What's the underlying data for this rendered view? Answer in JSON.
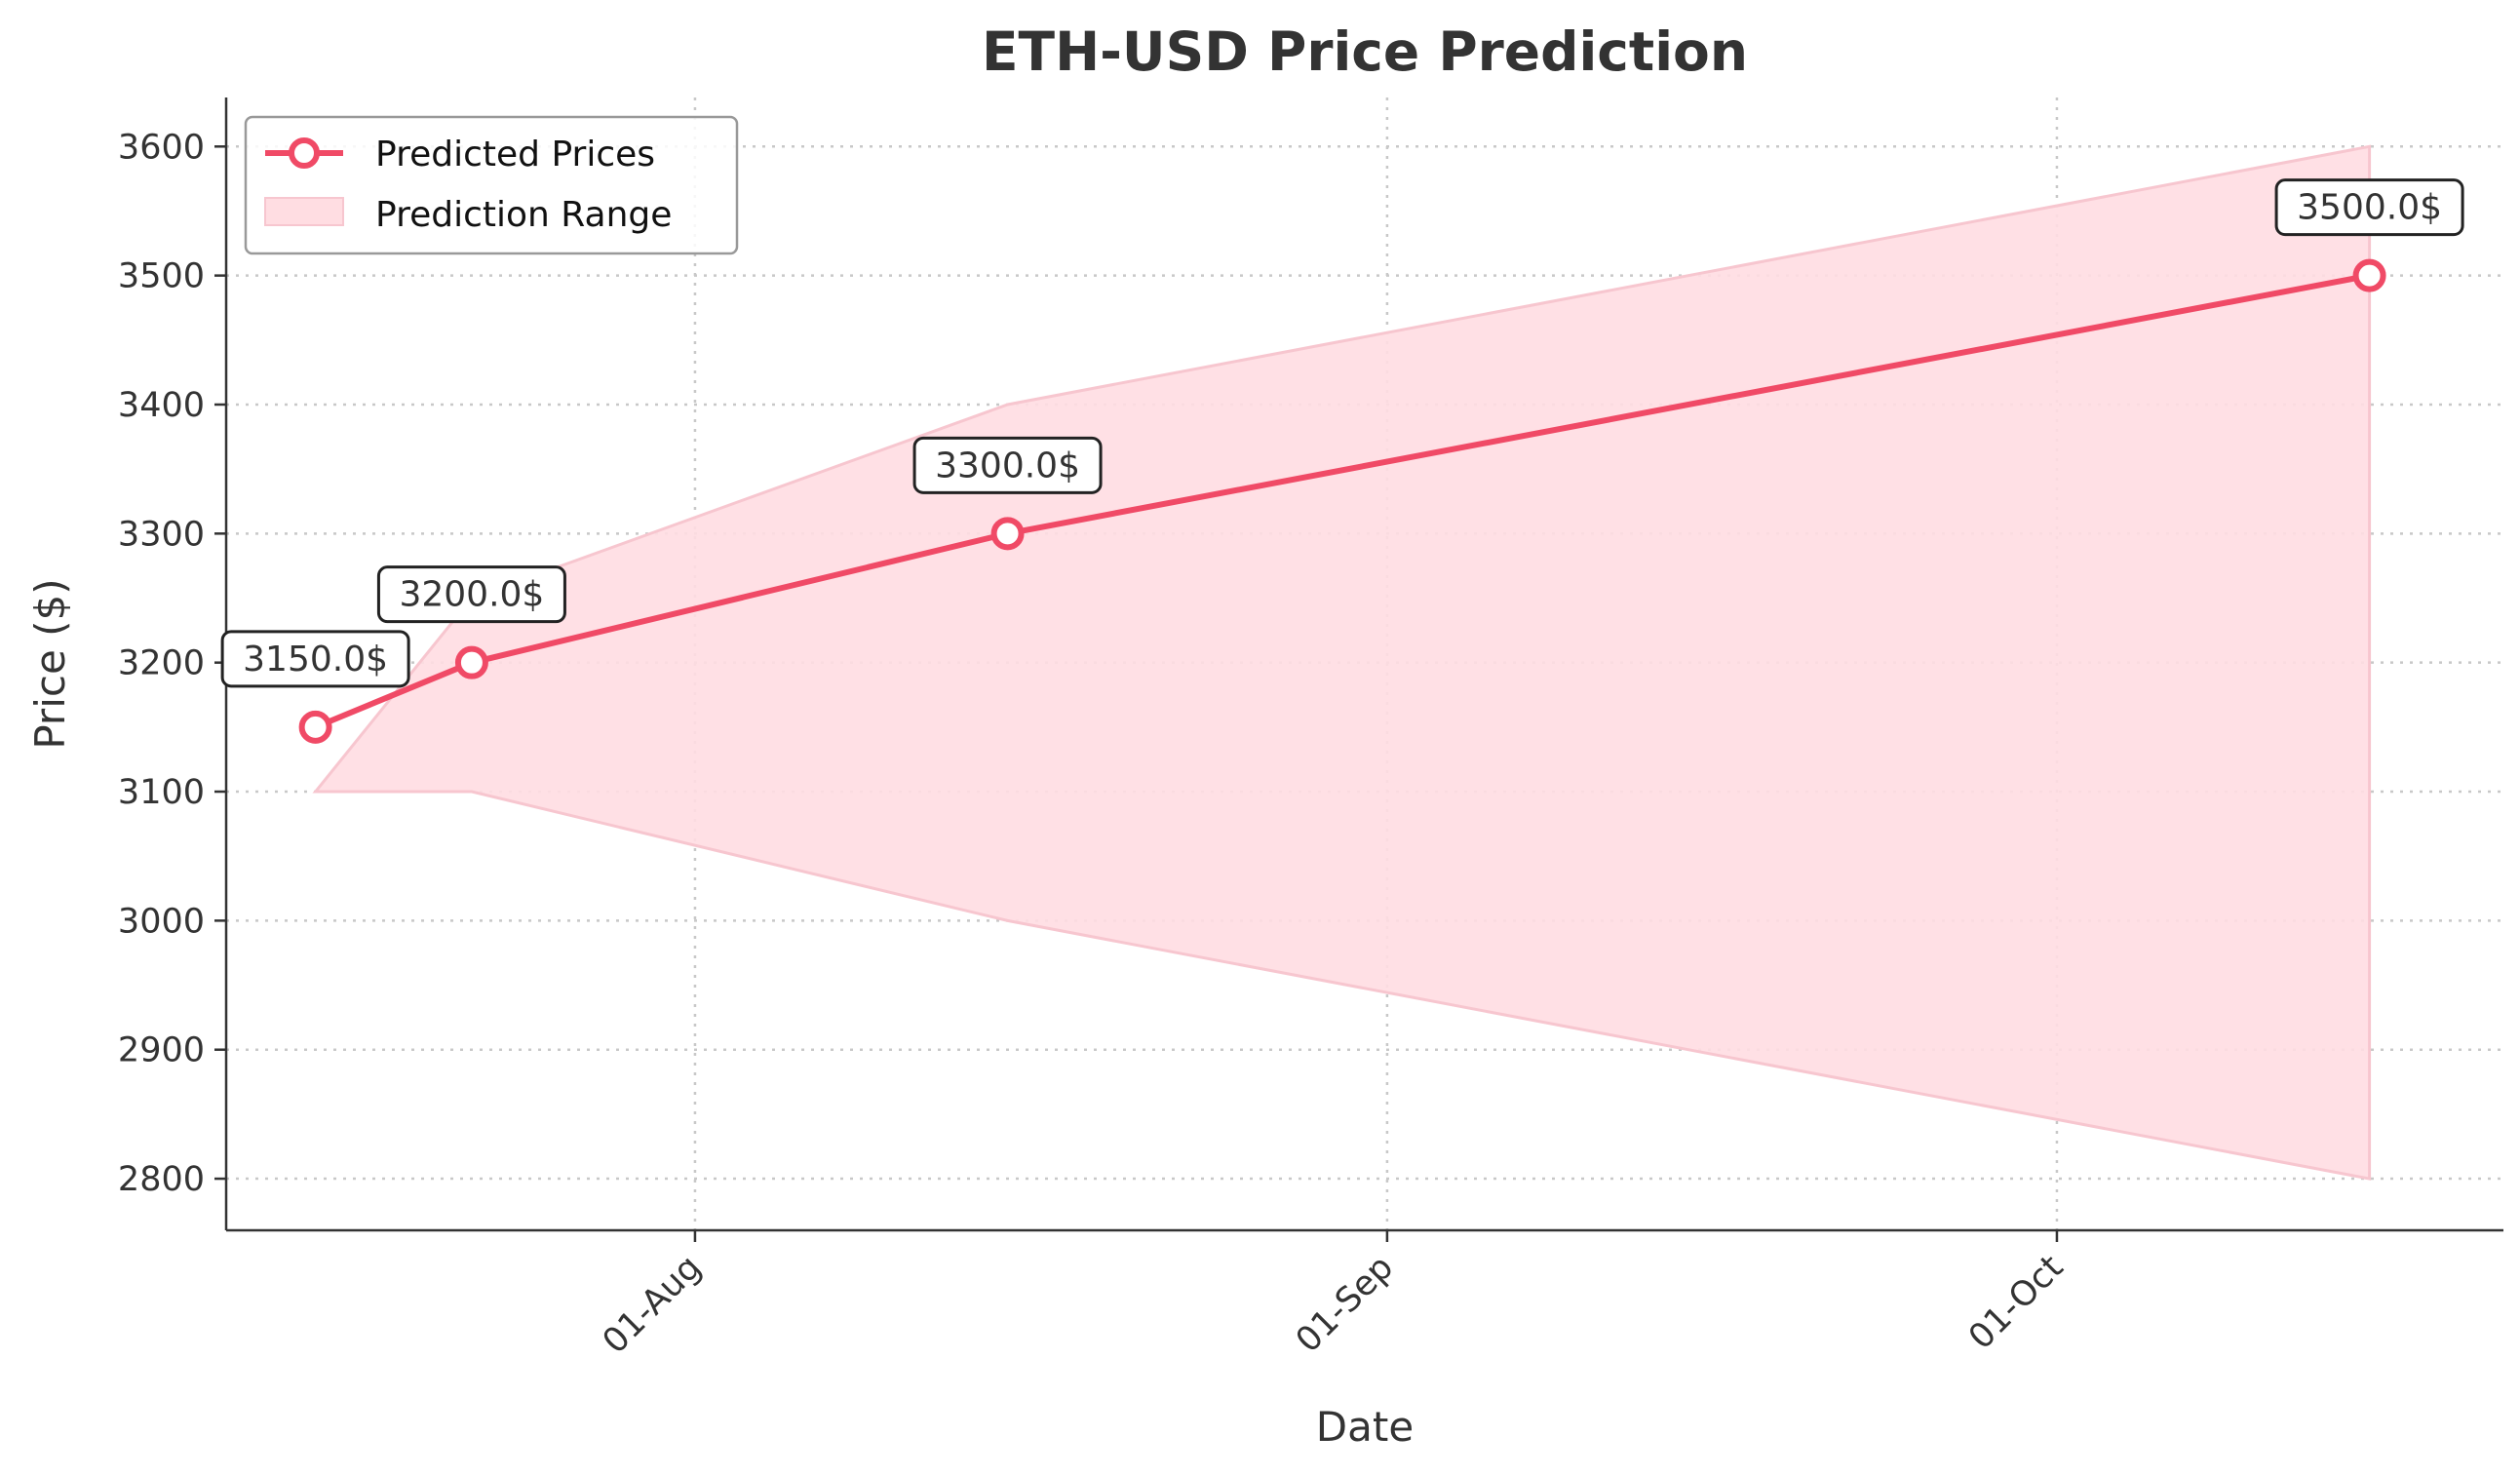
{
  "chart_data": {
    "type": "line",
    "title": "ETH-USD Price Prediction",
    "xlabel": "Date",
    "ylabel": "Price ($)",
    "x_ticks": [
      {
        "date": "2024-08-01",
        "label": "01-Aug"
      },
      {
        "date": "2024-09-01",
        "label": "01-Sep"
      },
      {
        "date": "2024-10-01",
        "label": "01-Oct"
      }
    ],
    "y_ticks": [
      2800,
      2900,
      3000,
      3100,
      3200,
      3300,
      3400,
      3500,
      3600
    ],
    "ylim": [
      2760,
      3638
    ],
    "xlim": [
      "2024-07-11",
      "2024-10-21"
    ],
    "grid": true,
    "legend_position": "top-left",
    "series": [
      {
        "name": "Predicted Prices",
        "color": "#f04a66",
        "x": [
          "2024-07-15",
          "2024-07-22",
          "2024-08-15",
          "2024-10-15"
        ],
        "values": [
          3150.0,
          3200.0,
          3300.0,
          3500.0
        ],
        "labels": [
          "3150.0$",
          "3200.0$",
          "3300.0$",
          "3500.0$"
        ]
      }
    ],
    "range": {
      "name": "Prediction Range",
      "color": "#ffdde2",
      "edge_color": "#f7c6cf",
      "x": [
        "2024-07-15",
        "2024-07-22",
        "2024-08-15",
        "2024-10-15"
      ],
      "lower": [
        3100,
        3100,
        3000,
        2800
      ],
      "upper": [
        3100,
        3250,
        3400,
        3600
      ]
    }
  }
}
